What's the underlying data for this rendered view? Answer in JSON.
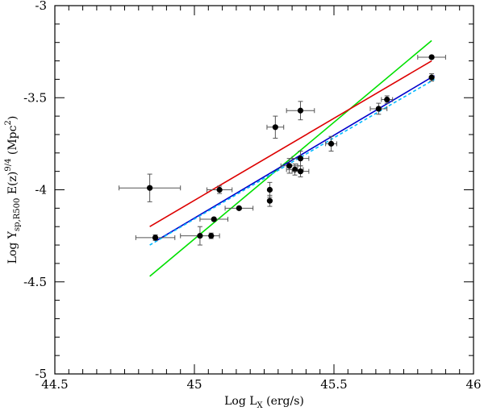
{
  "chart_data": {
    "type": "scatter",
    "xlabel": {
      "main": "Log L",
      "sub": "X",
      "tail": " (erg/s)"
    },
    "ylabel": {
      "main": "Log Y",
      "sub": "sp,R500",
      "mid": " E(z)",
      "sup": "9/4",
      "tail": " (Mpc",
      "sup2": "2",
      "end": ")"
    },
    "xlim": [
      44.5,
      46.0
    ],
    "ylim": [
      -5.0,
      -3.0
    ],
    "xticks": [
      44.5,
      45.0,
      45.5,
      46.0
    ],
    "xtick_labels": [
      "44.5",
      "45",
      "45.5",
      "46"
    ],
    "yticks": [
      -5.0,
      -4.5,
      -4.0,
      -3.5,
      -3.0
    ],
    "ytick_labels": [
      "-5",
      "-4.5",
      "-4",
      "-3.5",
      "-3"
    ],
    "points": [
      {
        "x": 44.84,
        "y": -3.99,
        "xerr": 0.11,
        "yerr": 0.075
      },
      {
        "x": 44.86,
        "y": -4.26,
        "xerr": 0.07,
        "yerr": 0.015
      },
      {
        "x": 45.02,
        "y": -4.25,
        "xerr": 0.07,
        "yerr": 0.05
      },
      {
        "x": 45.06,
        "y": -4.25,
        "xerr": 0.0,
        "yerr": 0.015
      },
      {
        "x": 45.07,
        "y": -4.16,
        "xerr": 0.05,
        "yerr": 0.0
      },
      {
        "x": 45.09,
        "y": -4.0,
        "xerr": 0.045,
        "yerr": 0.02
      },
      {
        "x": 45.16,
        "y": -4.1,
        "xerr": 0.05,
        "yerr": 0.0
      },
      {
        "x": 45.27,
        "y": -4.0,
        "xerr": 0.0,
        "yerr": 0.04
      },
      {
        "x": 45.27,
        "y": -4.06,
        "xerr": 0.0,
        "yerr": 0.03
      },
      {
        "x": 45.29,
        "y": -3.66,
        "xerr": 0.03,
        "yerr": 0.06
      },
      {
        "x": 45.34,
        "y": -3.87,
        "xerr": 0.03,
        "yerr": 0.04
      },
      {
        "x": 45.36,
        "y": -3.89,
        "xerr": 0.03,
        "yerr": 0.03
      },
      {
        "x": 45.38,
        "y": -3.9,
        "xerr": 0.03,
        "yerr": 0.03
      },
      {
        "x": 45.38,
        "y": -3.83,
        "xerr": 0.03,
        "yerr": 0.04
      },
      {
        "x": 45.38,
        "y": -3.57,
        "xerr": 0.05,
        "yerr": 0.05
      },
      {
        "x": 45.49,
        "y": -3.75,
        "xerr": 0.02,
        "yerr": 0.04
      },
      {
        "x": 45.66,
        "y": -3.56,
        "xerr": 0.03,
        "yerr": 0.03
      },
      {
        "x": 45.69,
        "y": -3.51,
        "xerr": 0.02,
        "yerr": 0.02
      },
      {
        "x": 45.85,
        "y": -3.28,
        "xerr": 0.05,
        "yerr": 0.0
      },
      {
        "x": 45.85,
        "y": -3.39,
        "xerr": 0.0,
        "yerr": 0.02
      }
    ],
    "fit_lines": [
      {
        "color": "#00e000",
        "x1": 44.84,
        "y1": -4.47,
        "x2": 45.85,
        "y2": -3.19,
        "dash": false
      },
      {
        "color": "#dd0000",
        "x1": 44.84,
        "y1": -4.2,
        "x2": 45.85,
        "y2": -3.3,
        "dash": false
      },
      {
        "color": "#0000cc",
        "x1": 44.86,
        "y1": -4.28,
        "x2": 45.86,
        "y2": -3.38,
        "dash": false
      },
      {
        "color": "#00b8ff",
        "x1": 44.84,
        "y1": -4.3,
        "x2": 45.86,
        "y2": -3.4,
        "dash": true
      }
    ]
  }
}
